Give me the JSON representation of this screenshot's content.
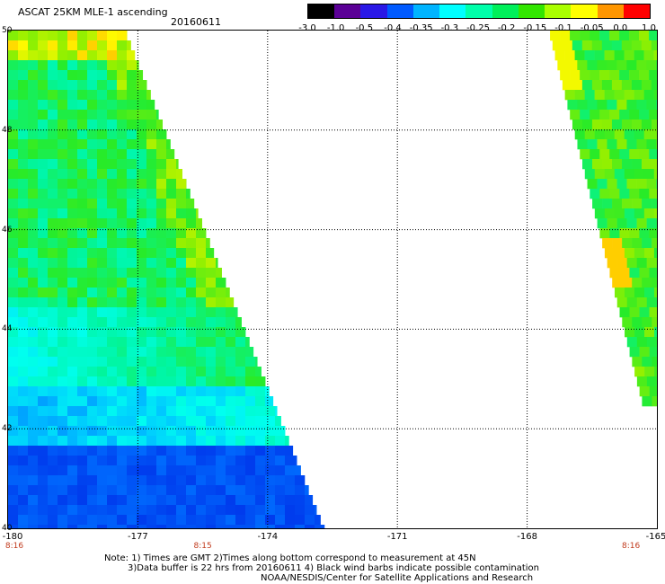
{
  "header": {
    "title": "ASCAT 25KM MLE-1 ascending",
    "date": "20160611"
  },
  "colorbar": {
    "labels": [
      "-3.0",
      "-1.0",
      "-0.5",
      "-0.4",
      "-0.35",
      "-0.3",
      "-0.25",
      "-0.2",
      "-0.15",
      "-0.1",
      "-0.05",
      "0.0",
      "1.0"
    ],
    "colors": [
      "#000000",
      "#5b0096",
      "#2a18e6",
      "#005aff",
      "#00b4ff",
      "#00ffff",
      "#00ffaa",
      "#00f05a",
      "#32e600",
      "#aaff00",
      "#ffff00",
      "#ff9600",
      "#ff0000"
    ]
  },
  "axes": {
    "lat_labels": [
      "50",
      "48",
      "46",
      "44",
      "42",
      "40"
    ],
    "lon_labels": [
      "-180",
      "-177",
      "-174",
      "-171",
      "-168",
      "-165"
    ],
    "time_labels": [
      "8:16",
      "8:15",
      "8:16"
    ]
  },
  "notes": {
    "line1": "Note: 1) Times are GMT 2)Times along bottom correspond to measurement at 45N",
    "line2": "3)Data buffer is 22 hrs from 20160611 4) Black wind barbs indicate possible contamination",
    "line3": "NOAA/NESDIS/Center for Satellite Applications and Research"
  },
  "map": {
    "type": "swath-heatmap",
    "lat_range": [
      40,
      50
    ],
    "lon_range": [
      -180,
      -165
    ],
    "gridlines": "dotted",
    "swaths": [
      {
        "name": "",
        "lat_bottom": 40,
        "lat_top": 50,
        "lon_left": -180,
        "lon_right_bottom": -172.7,
        "lon_right_top": -177.3
      },
      {
        "name": "",
        "lat_bottom": 42.4,
        "lat_top": 50,
        "lon_left_bottom": -165.3,
        "lon_left_top": -167.5,
        "lon_right": -165
      }
    ]
  }
}
